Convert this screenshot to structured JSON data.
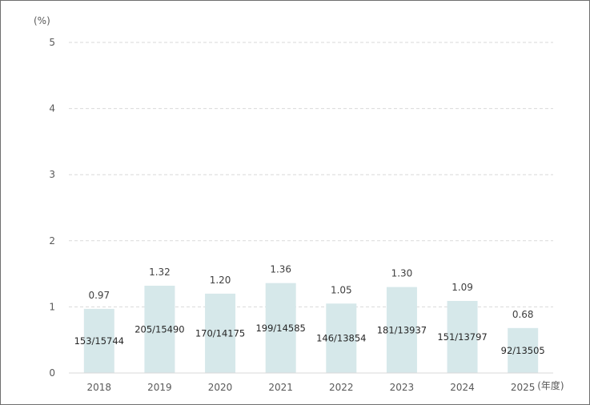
{
  "chart_data": {
    "type": "bar",
    "y_unit": "(%)",
    "x_unit": "(年度)",
    "categories": [
      "2018",
      "2019",
      "2020",
      "2021",
      "2022",
      "2023",
      "2024",
      "2025"
    ],
    "series": [
      {
        "values": [
          0.97,
          1.32,
          1.2,
          1.36,
          1.05,
          1.3,
          1.09,
          0.68
        ],
        "value_labels": [
          "0.97",
          "1.32",
          "1.20",
          "1.36",
          "1.05",
          "1.30",
          "1.09",
          "0.68"
        ],
        "count_labels": [
          "153/15744",
          "205/15490",
          "170/14175",
          "199/14585",
          "146/13854",
          "181/13937",
          "151/13797",
          "92/13505"
        ]
      }
    ],
    "ylim": [
      0,
      5
    ],
    "yticks": [
      0,
      1,
      2,
      3,
      4,
      5
    ],
    "grid": true,
    "bar_color": "#d6e8ea",
    "gridline_color": "#d9d9d9"
  }
}
